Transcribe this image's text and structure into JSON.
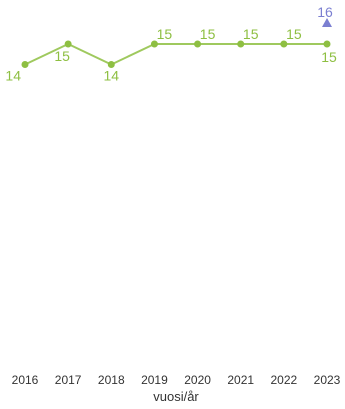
{
  "chart_data": {
    "type": "line",
    "categories": [
      "2016",
      "2017",
      "2018",
      "2019",
      "2020",
      "2021",
      "2022",
      "2023"
    ],
    "series": [
      {
        "values": [
          14,
          15,
          14,
          15,
          15,
          15,
          15,
          15
        ],
        "color": "#8ebf42",
        "marker": "circle"
      },
      {
        "values": [
          null,
          null,
          null,
          null,
          null,
          null,
          null,
          16
        ],
        "color": "#7b7fd1",
        "marker": "triangle"
      }
    ],
    "title": "",
    "xlabel": "vuosi/år",
    "ylabel": "",
    "grid": false,
    "legend": "none"
  }
}
